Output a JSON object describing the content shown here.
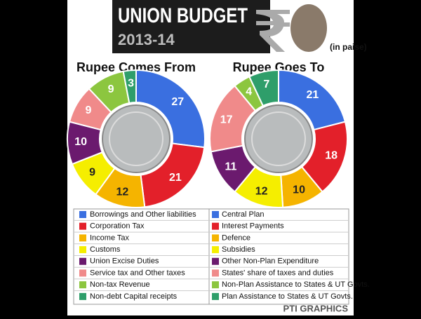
{
  "header": {
    "title": "UNION BUDGET",
    "year": "2013-14",
    "unit": "(in paise)"
  },
  "chart_data": [
    {
      "type": "pie",
      "title": "Rupee Comes From",
      "categories": [
        "Borrowings and Other liabilities",
        "Corporation Tax",
        "Income Tax",
        "Customs",
        "Union Excise Duties",
        "Service tax and Other taxes",
        "Non-tax Revenue",
        "Non-debt Capital receipts"
      ],
      "values": [
        27,
        21,
        12,
        9,
        10,
        9,
        9,
        3
      ],
      "colors": [
        "#3a6fe0",
        "#e3202a",
        "#f5b400",
        "#f5ee00",
        "#6b1a6e",
        "#f08a8a",
        "#8cc63f",
        "#2e9e6a"
      ]
    },
    {
      "type": "pie",
      "title": "Rupee Goes To",
      "categories": [
        "Central Plan",
        "Interest Payments",
        "Defence",
        "Subsidies",
        "Other Non-Plan Expenditure",
        "States' share of taxes and duties",
        "Non-Plan Assistance to States & UT Govts.",
        "Plan Assistance to States & UT Govts."
      ],
      "values": [
        21,
        18,
        10,
        12,
        11,
        17,
        4,
        7
      ],
      "colors": [
        "#3a6fe0",
        "#e3202a",
        "#f5b400",
        "#f5ee00",
        "#6b1a6e",
        "#f08a8a",
        "#8cc63f",
        "#2e9e6a"
      ]
    }
  ],
  "footer": {
    "credit": "PTI GRAPHICS"
  }
}
